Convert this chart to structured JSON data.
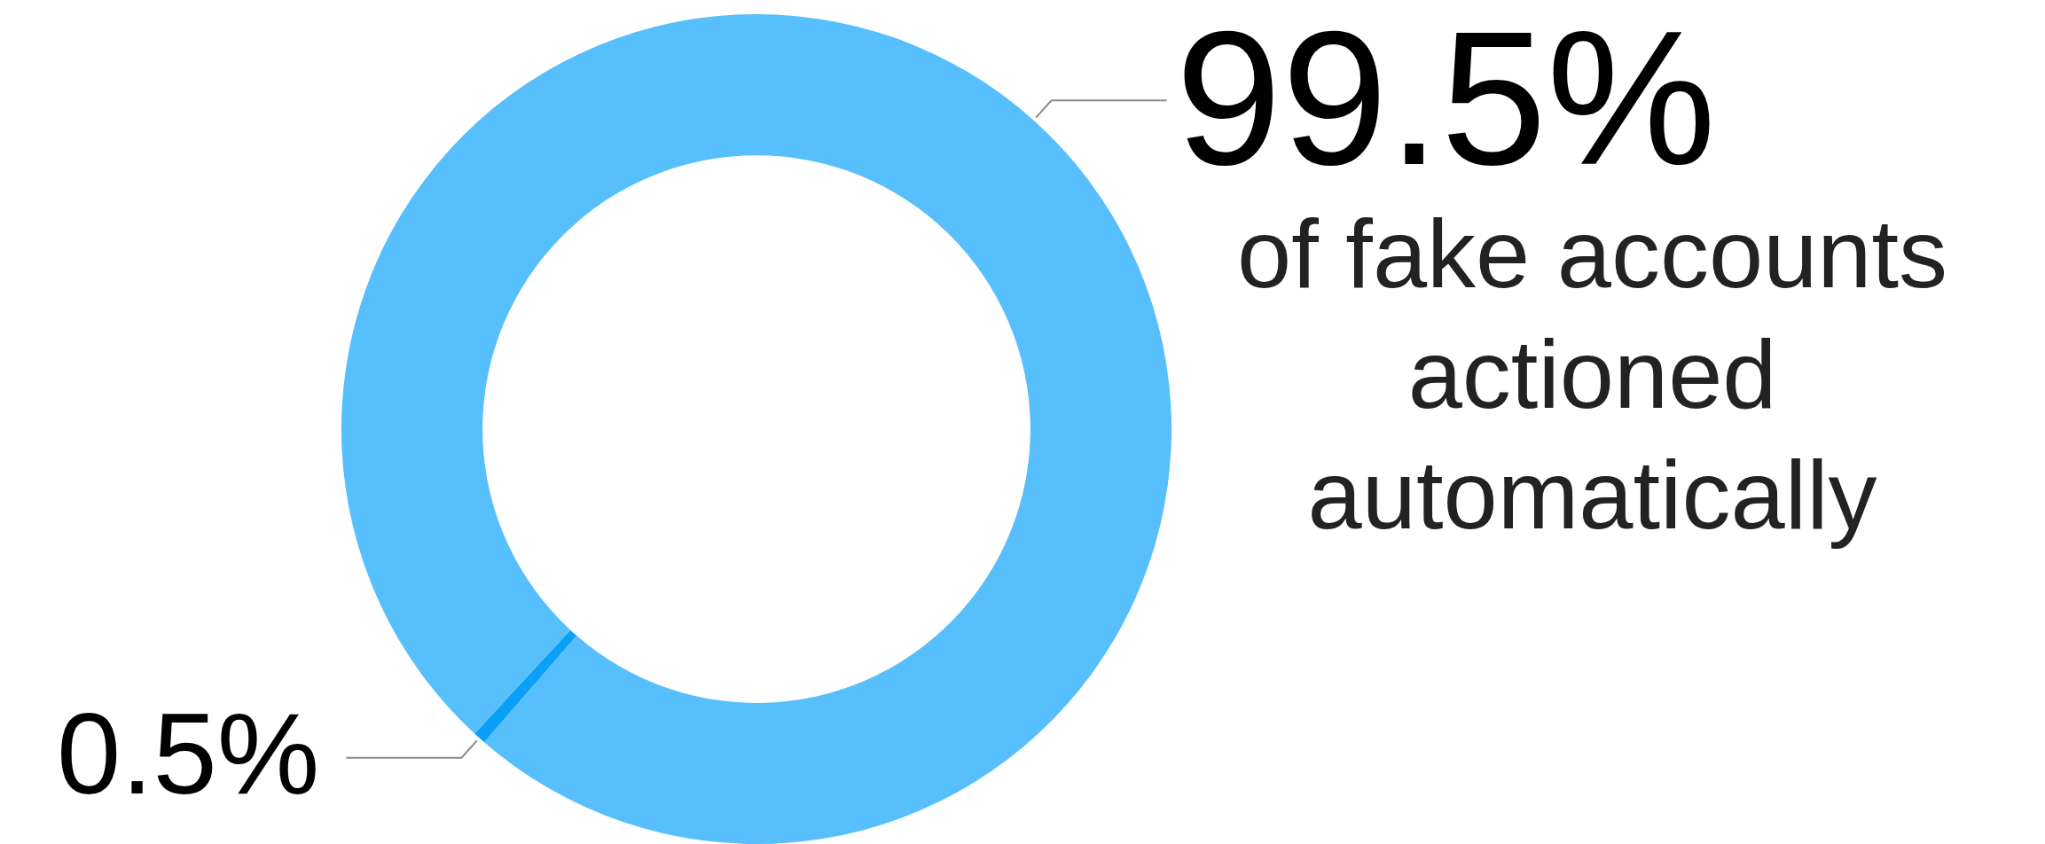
{
  "chart_data": {
    "type": "donut",
    "categories": [
      null,
      "of fake accounts actioned automatically"
    ],
    "values": [
      0.5,
      99.5
    ],
    "colors": [
      "#0ba0f8",
      "#56bffc"
    ],
    "value_labels": [
      "0.5%",
      "99.5%"
    ]
  }
}
